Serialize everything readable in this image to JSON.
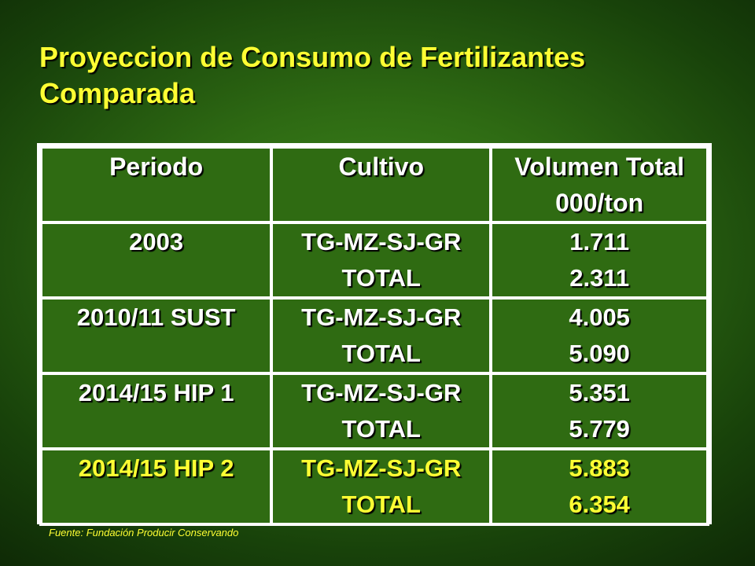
{
  "title": {
    "line1": "Proyeccion de Consumo de Fertilizantes",
    "line2": "Comparada"
  },
  "table": {
    "headers": {
      "periodo": "Periodo",
      "cultivo": "Cultivo",
      "volumen_line1": "Volumen Total",
      "volumen_line2": "000/ton"
    },
    "rows": [
      {
        "periodo": "2003",
        "cultivo_1": "TG-MZ-SJ-GR",
        "cultivo_2": "TOTAL",
        "volumen_1": "1.711",
        "volumen_2": "2.311"
      },
      {
        "periodo": "2010/11 SUST",
        "cultivo_1": "TG-MZ-SJ-GR",
        "cultivo_2": "TOTAL",
        "volumen_1": "4.005",
        "volumen_2": "5.090"
      },
      {
        "periodo": "2014/15 HIP 1",
        "cultivo_1": "TG-MZ-SJ-GR",
        "cultivo_2": "TOTAL",
        "volumen_1": "5.351",
        "volumen_2": "5.779"
      },
      {
        "periodo": "2014/15 HIP 2",
        "cultivo_1": "TG-MZ-SJ-GR",
        "cultivo_2": "TOTAL",
        "volumen_1": "5.883",
        "volumen_2": "6.354"
      }
    ]
  },
  "source": "Fuente: Fundación Producir Conservando",
  "colors": {
    "title": "#ffff33",
    "highlight_row": "#ffff33",
    "cell_background": "#2f6b12",
    "grid_lines": "#ffffff"
  }
}
